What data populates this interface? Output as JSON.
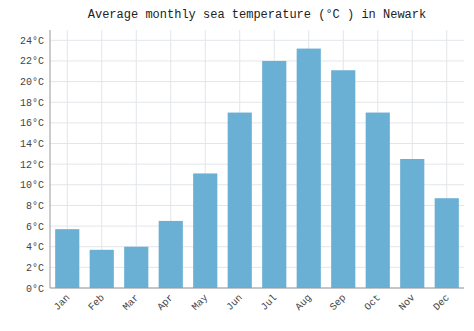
{
  "chart_data": {
    "type": "bar",
    "title": "Average monthly sea temperature (°C ) in Newark",
    "categories": [
      "Jan",
      "Feb",
      "Mar",
      "Apr",
      "May",
      "Jun",
      "Jul",
      "Aug",
      "Sep",
      "Oct",
      "Nov",
      "Dec"
    ],
    "values": [
      5.7,
      3.7,
      4.0,
      6.5,
      11.1,
      17.0,
      22.0,
      23.2,
      21.1,
      17.0,
      12.5,
      8.7
    ],
    "color": "#6aafd4",
    "ylim": [
      0,
      25
    ],
    "yticks": [
      {
        "value": 0,
        "label": "0°C"
      },
      {
        "value": 2,
        "label": "2°C"
      },
      {
        "value": 4,
        "label": "4°C"
      },
      {
        "value": 6,
        "label": "6°C"
      },
      {
        "value": 8,
        "label": "8°C"
      },
      {
        "value": 10,
        "label": "10°C"
      },
      {
        "value": 12,
        "label": "12°C"
      },
      {
        "value": 14,
        "label": "14°C"
      },
      {
        "value": 16,
        "label": "16°C"
      },
      {
        "value": 18,
        "label": "18°C"
      },
      {
        "value": 20,
        "label": "20°C"
      },
      {
        "value": 22,
        "label": "22°C"
      },
      {
        "value": 24,
        "label": "24°C"
      }
    ],
    "grid": true
  }
}
